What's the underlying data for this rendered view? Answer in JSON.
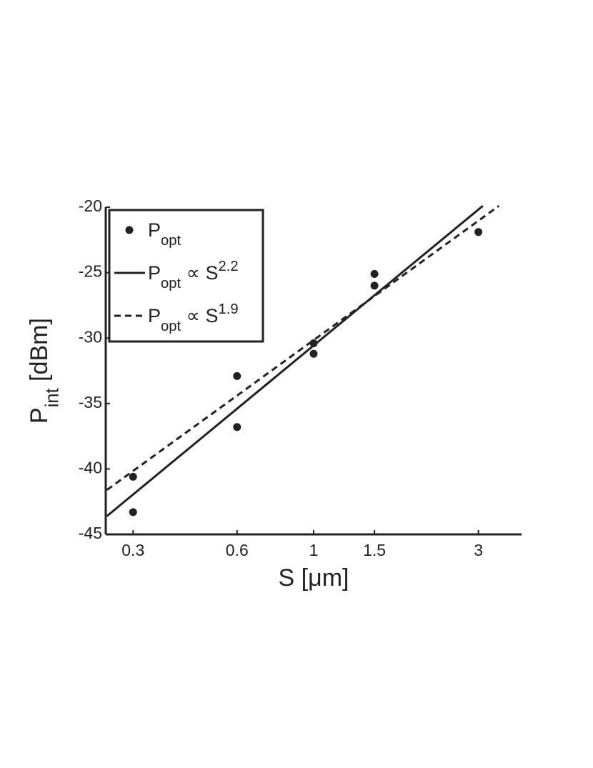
{
  "chart_data": {
    "type": "scatter",
    "xlabel": "S [μm]",
    "ylabel": [
      {
        "text": "P"
      },
      {
        "text": "int",
        "shift": "sub"
      },
      {
        "text": " [dBm]"
      }
    ],
    "xscale": "log",
    "xlim": [
      0.25,
      4
    ],
    "xticks": [
      0.3,
      0.6,
      1,
      1.5,
      3
    ],
    "ylim": [
      -45,
      -20
    ],
    "yticks": [
      -20,
      -25,
      -30,
      -35,
      -40,
      -45
    ],
    "legend": "upper left",
    "series": [
      {
        "name": [
          {
            "text": "P"
          },
          {
            "text": "opt",
            "shift": "sub"
          }
        ],
        "kind": "points",
        "color": "#222",
        "x": [
          0.3,
          0.3,
          0.6,
          0.6,
          1,
          1,
          1.5,
          1.5,
          3
        ],
        "values": [
          -40.6,
          -43.3,
          -32.9,
          -36.8,
          -30.4,
          -31.2,
          -25.1,
          -26.0,
          -21.9
        ]
      },
      {
        "name": [
          {
            "text": "P"
          },
          {
            "text": "opt",
            "shift": "sub"
          },
          {
            "text": " ∝ S"
          },
          {
            "text": "2.2",
            "shift": "sup"
          }
        ],
        "kind": "line",
        "dash": "solid",
        "color": "#222",
        "x": [
          0.252,
          3.09
        ],
        "values": [
          -43.6,
          -19.9
        ]
      },
      {
        "name": [
          {
            "text": "P"
          },
          {
            "text": "opt",
            "shift": "sub"
          },
          {
            "text": " ∝ S"
          },
          {
            "text": "1.9",
            "shift": "sup"
          }
        ],
        "kind": "line",
        "dash": "dashed",
        "color": "#222",
        "x": [
          0.252,
          3.44
        ],
        "values": [
          -41.6,
          -19.9
        ]
      }
    ]
  }
}
